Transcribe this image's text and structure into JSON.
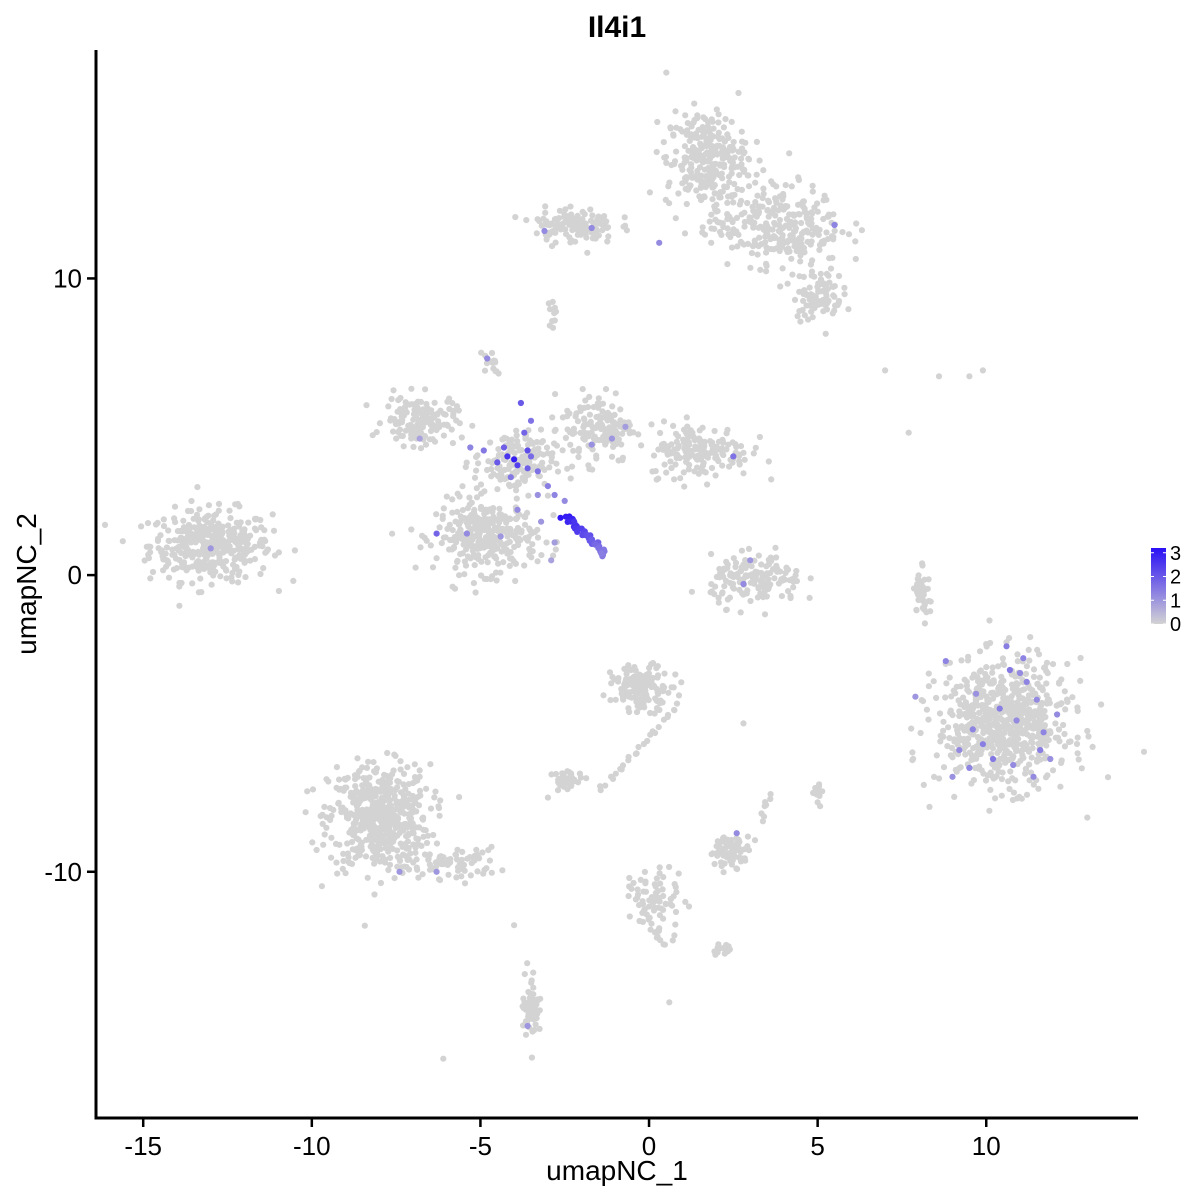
{
  "chart_data": {
    "type": "scatter",
    "title": "Il4i1",
    "xlabel": "umapNC_1",
    "ylabel": "umapNC_2",
    "xlim": [
      -16.4,
      14.5
    ],
    "ylim": [
      -18.3,
      17.7
    ],
    "xticks": [
      -15,
      -10,
      -5,
      0,
      5,
      10
    ],
    "xtick_labels": [
      "-15",
      "-10",
      "-5",
      "0",
      "5",
      "10"
    ],
    "yticks": [
      -10,
      0,
      10
    ],
    "ytick_labels": [
      "-10",
      "0",
      "10"
    ],
    "grid": false,
    "legend": {
      "type": "colorbar",
      "position": "right",
      "labels": [
        "3",
        "2",
        "1",
        "0"
      ],
      "range": [
        0,
        3.2
      ],
      "low_color": "#d3d3d3",
      "high_color": "#2a10f5"
    },
    "colors": {
      "low": "#d3d3d3",
      "high": "#2a10f5"
    },
    "clusters": [
      {
        "cx": -13.0,
        "cy": 1.0,
        "sx": 1.2,
        "sy": 0.8,
        "n": 380
      },
      {
        "cx": -8.0,
        "cy": -8.2,
        "sx": 1.0,
        "sy": 1.2,
        "n": 520
      },
      {
        "cx": -5.8,
        "cy": -9.7,
        "sx": 0.9,
        "sy": 0.35,
        "n": 70
      },
      {
        "cx": -4.8,
        "cy": 1.3,
        "sx": 1.0,
        "sy": 0.8,
        "n": 330
      },
      {
        "cx": -6.8,
        "cy": 5.2,
        "sx": 0.7,
        "sy": 0.55,
        "n": 150
      },
      {
        "cx": -4.0,
        "cy": 3.8,
        "sx": 0.8,
        "sy": 0.7,
        "n": 160
      },
      {
        "cx": -1.5,
        "cy": 5.0,
        "sx": 0.7,
        "sy": 0.8,
        "n": 140
      },
      {
        "cx": 1.5,
        "cy": 4.2,
        "sx": 1.0,
        "sy": 0.6,
        "n": 170
      },
      {
        "cx": 1.7,
        "cy": 14.0,
        "sx": 0.8,
        "sy": 1.1,
        "n": 280
      },
      {
        "cx": 3.8,
        "cy": 11.8,
        "sx": 1.3,
        "sy": 0.9,
        "n": 280
      },
      {
        "cx": 5.0,
        "cy": 9.5,
        "sx": 0.5,
        "sy": 0.6,
        "n": 90
      },
      {
        "cx": -2.2,
        "cy": 11.8,
        "sx": 0.8,
        "sy": 0.4,
        "n": 130
      },
      {
        "cx": 3.2,
        "cy": -0.2,
        "sx": 0.9,
        "sy": 0.55,
        "n": 150
      },
      {
        "cx": 10.5,
        "cy": -5.0,
        "sx": 1.3,
        "sy": 1.4,
        "n": 700
      },
      {
        "cx": -0.2,
        "cy": -3.8,
        "sx": 0.6,
        "sy": 0.5,
        "n": 140
      },
      {
        "cx": -2.4,
        "cy": -6.9,
        "sx": 0.3,
        "sy": 0.2,
        "n": 35
      },
      {
        "cx": 2.4,
        "cy": -9.3,
        "sx": 0.4,
        "sy": 0.35,
        "n": 70
      },
      {
        "cx": 8.1,
        "cy": -0.5,
        "sx": 0.15,
        "sy": 0.6,
        "n": 40
      },
      {
        "cx": -3.5,
        "cy": -14.5,
        "sx": 0.18,
        "sy": 0.8,
        "n": 55
      },
      {
        "cx": 0.3,
        "cy": -11.0,
        "sx": 0.5,
        "sy": 0.8,
        "n": 60
      },
      {
        "cx": 2.2,
        "cy": -12.6,
        "sx": 0.25,
        "sy": 0.15,
        "n": 15
      },
      {
        "cx": -4.7,
        "cy": 7.2,
        "sx": 0.2,
        "sy": 0.25,
        "n": 15
      },
      {
        "cx": -2.9,
        "cy": 8.8,
        "sx": 0.1,
        "sy": 0.4,
        "n": 10
      },
      {
        "cx": 5.0,
        "cy": -7.3,
        "sx": 0.1,
        "sy": 0.3,
        "n": 12
      }
    ],
    "streaks": [
      {
        "x0": -2.5,
        "y0": 2.0,
        "x1": -1.3,
        "y1": 0.7,
        "n": 45,
        "expr": [
          3.1,
          1.4
        ]
      },
      {
        "x0": 0.8,
        "y0": -4.5,
        "x1": -1.5,
        "y1": -7.3,
        "n": 25,
        "expr": [
          0,
          0
        ]
      },
      {
        "x0": 3.3,
        "y0": -8.2,
        "x1": 3.6,
        "y1": -7.4,
        "n": 8,
        "expr": [
          0,
          0
        ]
      },
      {
        "x0": -0.6,
        "y0": -10.3,
        "x1": 0.4,
        "y1": -12.5,
        "n": 22,
        "expr": [
          0,
          0
        ]
      }
    ],
    "outliers": [
      {
        "x": 7.0,
        "y": 6.9,
        "value": 0
      },
      {
        "x": 8.6,
        "y": 6.7,
        "value": 0
      },
      {
        "x": 9.5,
        "y": 6.7,
        "value": 0
      },
      {
        "x": 9.9,
        "y": 6.9,
        "value": 0
      },
      {
        "x": 7.7,
        "y": 4.8,
        "value": 0
      },
      {
        "x": -6.1,
        "y": -16.3,
        "value": 0
      },
      {
        "x": 0.6,
        "y": -14.4,
        "value": 0
      },
      {
        "x": -4.0,
        "y": -11.8,
        "value": 0
      },
      {
        "x": 2.8,
        "y": -5.0,
        "value": 0
      },
      {
        "x": -3.0,
        "y": -7.5,
        "value": 0
      }
    ],
    "expressing_points": [
      {
        "x": -4.0,
        "y": 3.9,
        "value": 3.0
      },
      {
        "x": -4.2,
        "y": 4.0,
        "value": 2.6
      },
      {
        "x": -3.9,
        "y": 3.7,
        "value": 2.4
      },
      {
        "x": -3.6,
        "y": 4.2,
        "value": 2.2
      },
      {
        "x": -4.5,
        "y": 3.8,
        "value": 2.0
      },
      {
        "x": -3.7,
        "y": 4.8,
        "value": 1.8
      },
      {
        "x": -3.8,
        "y": 5.8,
        "value": 2.0
      },
      {
        "x": -4.3,
        "y": 4.3,
        "value": 1.9
      },
      {
        "x": -3.3,
        "y": 3.5,
        "value": 1.6
      },
      {
        "x": -4.9,
        "y": 4.2,
        "value": 1.5
      },
      {
        "x": -5.3,
        "y": 4.3,
        "value": 1.3
      },
      {
        "x": -3.5,
        "y": 4.0,
        "value": 1.7
      },
      {
        "x": -3.0,
        "y": 3.0,
        "value": 1.4
      },
      {
        "x": -2.8,
        "y": 2.7,
        "value": 1.3
      },
      {
        "x": -2.5,
        "y": 2.5,
        "value": 1.2
      },
      {
        "x": -3.6,
        "y": 3.6,
        "value": 1.9
      },
      {
        "x": -3.3,
        "y": 2.7,
        "value": 1.1
      },
      {
        "x": -4.1,
        "y": 3.3,
        "value": 1.5
      },
      {
        "x": -3.5,
        "y": 5.2,
        "value": 1.6
      },
      {
        "x": -3.9,
        "y": 2.2,
        "value": 1.2
      },
      {
        "x": -4.8,
        "y": 7.3,
        "value": 1.2
      },
      {
        "x": -6.3,
        "y": 1.4,
        "value": 1.8
      },
      {
        "x": -5.4,
        "y": 1.4,
        "value": 1.2
      },
      {
        "x": -4.4,
        "y": 1.3,
        "value": 1.0
      },
      {
        "x": -3.2,
        "y": 1.8,
        "value": 1.0
      },
      {
        "x": -2.8,
        "y": 1.1,
        "value": 0.9
      },
      {
        "x": -2.9,
        "y": 0.5,
        "value": 0.8
      },
      {
        "x": -1.1,
        "y": 4.6,
        "value": 1.0
      },
      {
        "x": -1.7,
        "y": 4.4,
        "value": 1.1
      },
      {
        "x": -0.7,
        "y": 5.0,
        "value": 0.9
      },
      {
        "x": 2.5,
        "y": 4.0,
        "value": 1.6
      },
      {
        "x": -6.8,
        "y": 4.6,
        "value": 0.8
      },
      {
        "x": -13.0,
        "y": 0.9,
        "value": 1.0
      },
      {
        "x": -3.1,
        "y": 11.6,
        "value": 1.2
      },
      {
        "x": -1.7,
        "y": 11.7,
        "value": 1.2
      },
      {
        "x": 0.3,
        "y": 11.2,
        "value": 1.2
      },
      {
        "x": 5.5,
        "y": 11.8,
        "value": 1.3
      },
      {
        "x": 2.8,
        "y": -0.3,
        "value": 1.2
      },
      {
        "x": 3.0,
        "y": 0.5,
        "value": 1.0
      },
      {
        "x": 2.6,
        "y": -8.7,
        "value": 1.2
      },
      {
        "x": -7.4,
        "y": -10.0,
        "value": 1.0
      },
      {
        "x": -6.3,
        "y": -10.0,
        "value": 1.0
      },
      {
        "x": -3.6,
        "y": -15.2,
        "value": 1.0
      },
      {
        "x": 8.8,
        "y": -2.9,
        "value": 1.3
      },
      {
        "x": 10.6,
        "y": -2.4,
        "value": 1.4
      },
      {
        "x": 11.1,
        "y": -2.8,
        "value": 1.3
      },
      {
        "x": 10.7,
        "y": -3.2,
        "value": 1.5
      },
      {
        "x": 11.2,
        "y": -3.6,
        "value": 1.3
      },
      {
        "x": 11.5,
        "y": -4.2,
        "value": 1.2
      },
      {
        "x": 10.4,
        "y": -4.5,
        "value": 1.4
      },
      {
        "x": 10.9,
        "y": -4.9,
        "value": 1.2
      },
      {
        "x": 9.6,
        "y": -5.2,
        "value": 1.3
      },
      {
        "x": 9.9,
        "y": -5.7,
        "value": 1.4
      },
      {
        "x": 9.2,
        "y": -5.9,
        "value": 1.2
      },
      {
        "x": 11.7,
        "y": -5.3,
        "value": 1.3
      },
      {
        "x": 10.2,
        "y": -6.2,
        "value": 1.5
      },
      {
        "x": 9.5,
        "y": -6.5,
        "value": 1.3
      },
      {
        "x": 11.4,
        "y": -6.8,
        "value": 1.2
      },
      {
        "x": 9.0,
        "y": -6.8,
        "value": 1.1
      },
      {
        "x": 10.8,
        "y": -6.4,
        "value": 1.2
      },
      {
        "x": 11.9,
        "y": -6.2,
        "value": 1.1
      },
      {
        "x": 12.1,
        "y": -4.7,
        "value": 1.2
      },
      {
        "x": 7.9,
        "y": -4.1,
        "value": 1.0
      },
      {
        "x": 11.0,
        "y": -3.3,
        "value": 1.2
      },
      {
        "x": 9.7,
        "y": -4.0,
        "value": 1.1
      },
      {
        "x": 11.6,
        "y": -5.9,
        "value": 1.4
      }
    ]
  }
}
